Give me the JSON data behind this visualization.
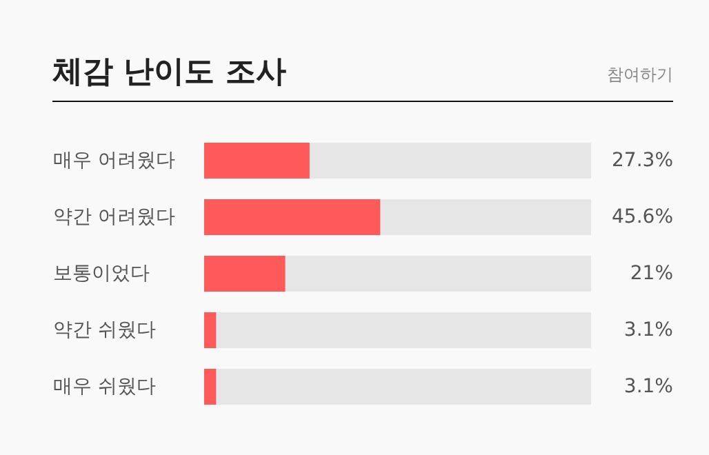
{
  "chart_data": {
    "type": "bar",
    "orientation": "horizontal",
    "title": "체감 난이도 조사",
    "annotations": [
      "참여하기"
    ],
    "categories": [
      "매우 어려웠다",
      "약간 어려웠다",
      "보통이었다",
      "약간 쉬웠다",
      "매우 쉬웠다"
    ],
    "values": [
      27.3,
      45.6,
      21,
      3.1,
      3.1
    ],
    "value_labels": [
      "27.3%",
      "45.6%",
      "21%",
      "3.1%",
      "3.1%"
    ],
    "color": "#ff5a5a",
    "xlim": [
      0,
      100
    ]
  }
}
